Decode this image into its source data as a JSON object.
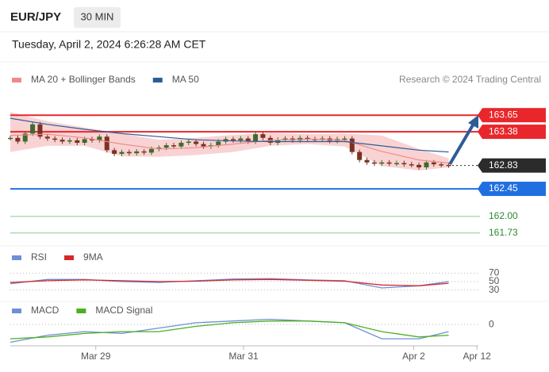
{
  "header": {
    "symbol": "EUR/JPY",
    "interval": "30 MIN",
    "timestamp": "Tuesday, April 2, 2024 6:26:28 AM CET",
    "credit": "Research © 2024 Trading Central"
  },
  "chart_data": [
    {
      "type": "candlestick",
      "closes": [
        163.28,
        163.22,
        163.35,
        163.5,
        163.3,
        163.27,
        163.25,
        163.22,
        163.24,
        163.2,
        163.26,
        163.24,
        163.3,
        163.08,
        163.02,
        163.05,
        163.03,
        163.06,
        163.04,
        163.1,
        163.12,
        163.16,
        163.14,
        163.2,
        163.22,
        163.18,
        163.14,
        163.16,
        163.22,
        163.26,
        163.24,
        163.27,
        163.22,
        163.34,
        163.28,
        163.2,
        163.25,
        163.27,
        163.24,
        163.28,
        163.26,
        163.25,
        163.27,
        163.23,
        163.26,
        163.27,
        163.05,
        162.92,
        162.88,
        162.86,
        162.88,
        162.86,
        162.87,
        162.85,
        162.84,
        162.8,
        162.88,
        162.85,
        162.84,
        162.83
      ],
      "up_color": "#3d6b2e",
      "down_color": "#7a3322",
      "indicator_x": [
        0,
        5,
        10,
        15,
        20,
        25,
        30,
        35,
        40,
        45,
        50,
        55,
        59
      ],
      "series": [
        {
          "name": "MA 20 + Bollinger Bands",
          "color": "#f08a8a",
          "band_color": "#f9d3d3",
          "values": [
            163.32,
            163.34,
            163.28,
            163.18,
            163.1,
            163.12,
            163.18,
            163.24,
            163.26,
            163.24,
            163.06,
            162.92,
            162.87
          ],
          "band_upper": [
            163.7,
            163.55,
            163.45,
            163.35,
            163.25,
            163.28,
            163.33,
            163.36,
            163.34,
            163.35,
            163.32,
            163.1,
            162.95
          ],
          "band_lower": [
            163.05,
            163.15,
            163.15,
            162.98,
            162.97,
            163.0,
            163.05,
            163.15,
            163.18,
            163.14,
            162.82,
            162.75,
            162.8
          ]
        },
        {
          "name": "MA 50",
          "color": "#2e5c99",
          "values": [
            163.6,
            163.5,
            163.42,
            163.35,
            163.3,
            163.25,
            163.23,
            163.22,
            163.22,
            163.22,
            163.15,
            163.08,
            163.05
          ]
        }
      ],
      "levels": {
        "values": [
          163.65,
          163.38,
          162.83,
          162.45,
          162.0,
          161.73
        ],
        "value_labels": [
          "163.65",
          "163.38",
          "162.83",
          "162.45",
          "162.00",
          "161.73"
        ],
        "colors": [
          "#e8262b",
          "#e8262b",
          "#2b2b2b",
          "#1f6fe0",
          "#8cc98c",
          "#8cc98c"
        ],
        "label_colors": [
          "#ffffff",
          "#ffffff",
          "#ffffff",
          "#ffffff",
          "#2e8b2e",
          "#2e8b2e"
        ],
        "boxed": [
          true,
          true,
          true,
          true,
          false,
          false
        ],
        "line_styles": [
          "solid",
          "solid",
          "dotted",
          "solid",
          "solid",
          "solid"
        ]
      },
      "xlim": [
        0,
        63
      ],
      "ylim": [
        161.65,
        164.04
      ],
      "xticks": [
        {
          "value": 11.5,
          "label": "Mar 29"
        },
        {
          "value": 31.4,
          "label": "Mar 31"
        },
        {
          "value": 54.3,
          "label": "Apr 2"
        },
        {
          "value": 62.8,
          "label": "Apr 12"
        }
      ]
    },
    {
      "type": "line",
      "x": [
        0,
        5,
        10,
        15,
        20,
        25,
        30,
        35,
        40,
        45,
        50,
        55,
        59
      ],
      "series": [
        {
          "name": "RSI",
          "color": "#6d8fd9",
          "values": [
            45,
            55,
            55,
            50,
            48,
            52,
            56,
            57,
            54,
            52,
            35,
            40,
            50
          ]
        },
        {
          "name": "9MA",
          "color": "#d62828",
          "values": [
            48,
            52,
            54,
            52,
            50,
            51,
            54,
            55,
            53,
            51,
            42,
            40,
            46
          ]
        }
      ],
      "xlim": [
        0,
        63
      ],
      "ylim": [
        18,
        82
      ],
      "yticks": [
        70,
        50,
        30
      ],
      "grid": true
    },
    {
      "type": "line",
      "x": [
        0,
        5,
        10,
        15,
        20,
        25,
        30,
        35,
        40,
        45,
        50,
        55,
        59
      ],
      "series": [
        {
          "name": "MACD",
          "color": "#6d8fd9",
          "values": [
            -0.1,
            -0.06,
            -0.04,
            -0.05,
            -0.02,
            0.01,
            0.02,
            0.03,
            0.02,
            0.01,
            -0.08,
            -0.08,
            -0.04
          ]
        },
        {
          "name": "MACD Signal",
          "color": "#4caf1f",
          "values": [
            -0.08,
            -0.07,
            -0.05,
            -0.04,
            -0.04,
            -0.01,
            0.01,
            0.02,
            0.02,
            0.01,
            -0.04,
            -0.07,
            -0.06
          ]
        }
      ],
      "xlim": [
        0,
        63
      ],
      "ylim": [
        -0.12,
        0.05
      ],
      "yticks": [
        0
      ],
      "grid": true
    }
  ]
}
